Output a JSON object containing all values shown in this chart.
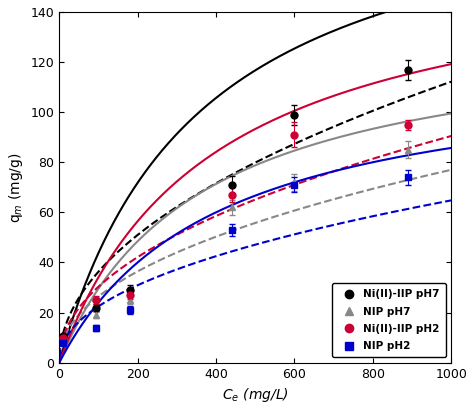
{
  "xlabel": "C$_e$ (mg/L)",
  "ylabel": "q$_m$ (mg/g)",
  "xlim": [
    0,
    1000
  ],
  "ylim": [
    0,
    140
  ],
  "xticks": [
    0,
    200,
    400,
    600,
    800,
    1000
  ],
  "yticks": [
    0,
    20,
    40,
    60,
    80,
    100,
    120,
    140
  ],
  "series": [
    {
      "label": "Ni(II)-IIP pH7",
      "color": "#000000",
      "marker": "o",
      "markersize": 5,
      "x_data": [
        10,
        95,
        180,
        440,
        600,
        890
      ],
      "y_data": [
        10.5,
        22,
        29,
        71,
        99,
        117
      ],
      "y_err": [
        1.0,
        1.5,
        2.0,
        3.5,
        4.0,
        4.0
      ],
      "langmuir_qm": 200.0,
      "langmuir_kl": 0.0028,
      "freundlich_kf": 3.8,
      "freundlich_n": 0.49
    },
    {
      "label": "NIP pH7",
      "color": "#888888",
      "marker": "^",
      "markersize": 5,
      "x_data": [
        10,
        95,
        180,
        440,
        600,
        890
      ],
      "y_data": [
        9.0,
        19,
        25,
        62,
        72,
        85
      ],
      "y_err": [
        1.0,
        1.2,
        1.5,
        3.0,
        3.5,
        3.5
      ],
      "langmuir_qm": 135.0,
      "langmuir_kl": 0.0028,
      "freundlich_kf": 3.1,
      "freundlich_n": 0.465
    },
    {
      "label": "Ni(II)-IIP pH2",
      "color": "#cc0033",
      "marker": "o",
      "markersize": 5,
      "x_data": [
        10,
        95,
        180,
        440,
        600,
        890
      ],
      "y_data": [
        10.0,
        25,
        27,
        67,
        91,
        95
      ],
      "y_err": [
        1.0,
        1.5,
        1.5,
        3.0,
        5.0,
        2.0
      ],
      "langmuir_qm": 165.0,
      "langmuir_kl": 0.0026,
      "freundlich_kf": 3.4,
      "freundlich_n": 0.475
    },
    {
      "label": "NIP pH2",
      "color": "#0000cc",
      "marker": "s",
      "markersize": 5,
      "x_data": [
        10,
        95,
        180,
        440,
        600,
        890
      ],
      "y_data": [
        8.0,
        14,
        21,
        53,
        71,
        74
      ],
      "y_err": [
        0.8,
        1.2,
        1.5,
        2.5,
        3.0,
        3.0
      ],
      "langmuir_qm": 120.0,
      "langmuir_kl": 0.0025,
      "freundlich_kf": 2.7,
      "freundlich_n": 0.46
    }
  ]
}
